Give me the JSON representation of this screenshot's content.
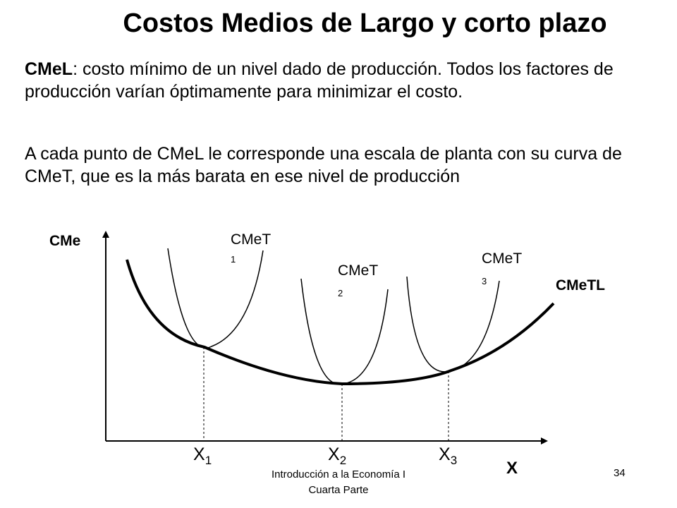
{
  "slide": {
    "title": "Costos Medios de Largo y corto plazo",
    "paragraph1_term": "CMeL",
    "paragraph1_rest": ": costo mínimo de un nivel dado de producción. Todos los factores de producción varían óptimamente para minimizar el costo.",
    "paragraph2": "A cada punto de CMeL  le corresponde una escala de planta con su curva de CMeT, que es la más barata en ese nivel de producción"
  },
  "diagram": {
    "y_axis_label": "CMe",
    "x_axis_label": "X",
    "long_run_curve_label": "CMeTL",
    "short_run_curves": [
      {
        "name": "CMeT",
        "index": "1"
      },
      {
        "name": "CMeT",
        "index": "2"
      },
      {
        "name": "CMeT",
        "index": "3"
      }
    ],
    "x_ticks": [
      {
        "base": "X",
        "sub": "1"
      },
      {
        "base": "X",
        "sub": "2"
      },
      {
        "base": "X",
        "sub": "3"
      }
    ]
  },
  "footer": {
    "course_line1": "Introducción a la Economía I",
    "course_line2": "Cuarta Parte",
    "page_number": "34"
  }
}
